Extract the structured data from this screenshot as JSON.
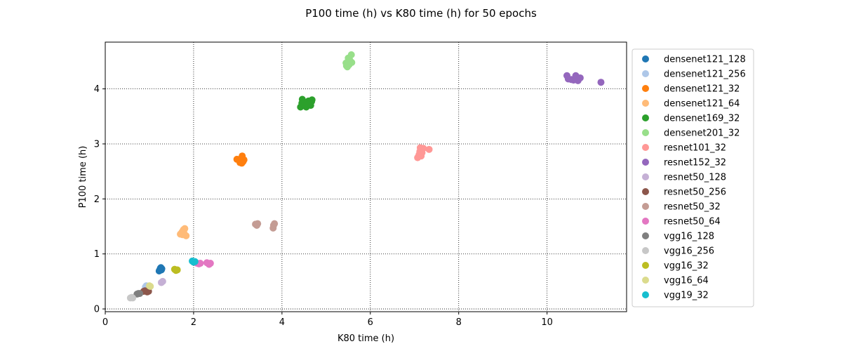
{
  "chart_data": {
    "type": "scatter",
    "title": "P100 time (h) vs K80 time (h) for 50 epochs",
    "xlabel": "K80 time (h)",
    "ylabel": "P100 time (h)",
    "xlim": [
      0,
      11.8
    ],
    "ylim": [
      -0.05,
      4.85
    ],
    "xticks": [
      0,
      2,
      4,
      6,
      8,
      10
    ],
    "yticks": [
      0,
      1,
      2,
      3,
      4
    ],
    "grid": true,
    "legend_position": "outside-right",
    "series": [
      {
        "name": "densenet121_128",
        "color": "#1f77b4",
        "points": [
          [
            1.22,
            0.69
          ],
          [
            1.24,
            0.72
          ],
          [
            1.25,
            0.74
          ],
          [
            1.27,
            0.71
          ],
          [
            1.28,
            0.73
          ],
          [
            1.23,
            0.7
          ],
          [
            1.26,
            0.75
          ]
        ]
      },
      {
        "name": "densenet121_256",
        "color": "#aec7e8",
        "points": [
          [
            0.91,
            0.4
          ],
          [
            0.93,
            0.42
          ],
          [
            0.95,
            0.41
          ]
        ]
      },
      {
        "name": "densenet121_32",
        "color": "#ff7f0e",
        "points": [
          [
            2.98,
            2.72
          ],
          [
            3.05,
            2.66
          ],
          [
            3.08,
            2.74
          ],
          [
            3.1,
            2.78
          ],
          [
            3.12,
            2.68
          ],
          [
            3.14,
            2.71
          ],
          [
            3.06,
            2.7
          ],
          [
            3.09,
            2.65
          ]
        ]
      },
      {
        "name": "densenet121_64",
        "color": "#ffbb78",
        "points": [
          [
            1.7,
            1.36
          ],
          [
            1.74,
            1.4
          ],
          [
            1.77,
            1.44
          ],
          [
            1.8,
            1.46
          ],
          [
            1.83,
            1.33
          ],
          [
            1.75,
            1.35
          ],
          [
            1.78,
            1.38
          ]
        ]
      },
      {
        "name": "densenet169_32",
        "color": "#2ca02c",
        "points": [
          [
            4.42,
            3.67
          ],
          [
            4.45,
            3.74
          ],
          [
            4.46,
            3.81
          ],
          [
            4.55,
            3.67
          ],
          [
            4.58,
            3.75
          ],
          [
            4.6,
            3.78
          ],
          [
            4.65,
            3.7
          ],
          [
            4.67,
            3.77
          ],
          [
            4.68,
            3.8
          ],
          [
            4.5,
            3.72
          ],
          [
            4.62,
            3.73
          ]
        ]
      },
      {
        "name": "densenet201_32",
        "color": "#98df8a",
        "points": [
          [
            5.45,
            4.47
          ],
          [
            5.48,
            4.4
          ],
          [
            5.5,
            4.56
          ],
          [
            5.52,
            4.44
          ],
          [
            5.55,
            4.5
          ],
          [
            5.57,
            4.62
          ],
          [
            5.58,
            4.48
          ],
          [
            5.53,
            4.53
          ],
          [
            5.46,
            4.42
          ]
        ]
      },
      {
        "name": "resnet101_32",
        "color": "#ff9896",
        "points": [
          [
            7.07,
            2.75
          ],
          [
            7.1,
            2.8
          ],
          [
            7.13,
            2.93
          ],
          [
            7.15,
            2.78
          ],
          [
            7.17,
            2.84
          ],
          [
            7.2,
            2.92
          ],
          [
            7.33,
            2.9
          ],
          [
            7.12,
            2.86
          ]
        ]
      },
      {
        "name": "resnet152_32",
        "color": "#9467bd",
        "points": [
          [
            10.45,
            4.24
          ],
          [
            10.48,
            4.18
          ],
          [
            10.55,
            4.17
          ],
          [
            10.6,
            4.16
          ],
          [
            10.65,
            4.24
          ],
          [
            10.7,
            4.15
          ],
          [
            10.73,
            4.19
          ],
          [
            10.75,
            4.2
          ],
          [
            11.22,
            4.12
          ]
        ]
      },
      {
        "name": "resnet50_128",
        "color": "#c5b0d5",
        "points": [
          [
            1.27,
            0.48
          ],
          [
            1.3,
            0.5
          ]
        ]
      },
      {
        "name": "resnet50_256",
        "color": "#8c564b",
        "points": [
          [
            0.87,
            0.32
          ],
          [
            0.9,
            0.33
          ],
          [
            0.95,
            0.31
          ],
          [
            0.98,
            0.32
          ]
        ]
      },
      {
        "name": "resnet50_32",
        "color": "#c49c94",
        "points": [
          [
            3.4,
            1.54
          ],
          [
            3.43,
            1.52
          ],
          [
            3.45,
            1.55
          ],
          [
            3.8,
            1.47
          ],
          [
            3.81,
            1.52
          ],
          [
            3.83,
            1.55
          ]
        ]
      },
      {
        "name": "resnet50_64",
        "color": "#e377c2",
        "points": [
          [
            2.08,
            0.83
          ],
          [
            2.12,
            0.82
          ],
          [
            2.15,
            0.83
          ],
          [
            2.3,
            0.84
          ],
          [
            2.35,
            0.81
          ],
          [
            2.38,
            0.83
          ]
        ]
      },
      {
        "name": "vgg16_128",
        "color": "#7f7f7f",
        "points": [
          [
            0.72,
            0.27
          ],
          [
            0.75,
            0.28
          ],
          [
            0.78,
            0.28
          ]
        ]
      },
      {
        "name": "vgg16_256",
        "color": "#c7c7c7",
        "points": [
          [
            0.57,
            0.2
          ],
          [
            0.6,
            0.21
          ],
          [
            0.62,
            0.2
          ]
        ]
      },
      {
        "name": "vgg16_32",
        "color": "#bcbd22",
        "points": [
          [
            1.57,
            0.72
          ],
          [
            1.6,
            0.7
          ],
          [
            1.63,
            0.71
          ]
        ]
      },
      {
        "name": "vgg16_64",
        "color": "#dbdb8d",
        "points": [
          [
            1.0,
            0.42
          ],
          [
            1.02,
            0.41
          ]
        ]
      },
      {
        "name": "vgg19_32",
        "color": "#17becf",
        "points": [
          [
            1.97,
            0.87
          ],
          [
            2.0,
            0.85
          ],
          [
            2.03,
            0.86
          ]
        ]
      }
    ]
  }
}
